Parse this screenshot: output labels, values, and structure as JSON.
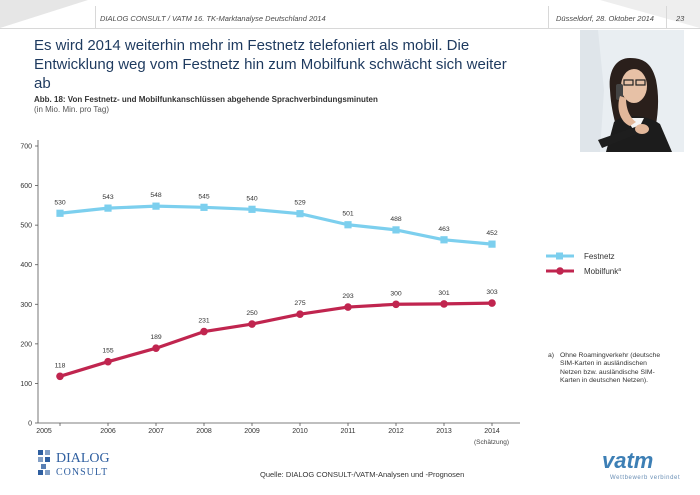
{
  "header": {
    "doc_title": "DIALOG CONSULT / VATM 16. TK-Marktanalyse Deutschland 2014",
    "date": "Düsseldorf, 28. Oktober 2014",
    "page_number": "23"
  },
  "headline": "Es wird 2014 weiterhin mehr im Festnetz telefoniert als mobil. Die Entwicklung weg vom Festnetz hin zum Mobilfunk schwächt sich weiter ab",
  "figure": {
    "title": "Abb. 18: Von Festnetz- und Mobilfunkanschlüssen abgehende Sprachverbindungsminuten",
    "subtitle": "(in Mio. Min. pro Tag)",
    "estimate_note": "(Schätzung)"
  },
  "chart_data": {
    "type": "line",
    "x": [
      "2005",
      "2006",
      "2007",
      "2008",
      "2009",
      "2010",
      "2011",
      "2012",
      "2013",
      "2014"
    ],
    "ylim": [
      0,
      700
    ],
    "yticks": [
      0,
      100,
      200,
      300,
      400,
      500,
      600,
      700
    ],
    "grid": false,
    "legend_position": "right",
    "series": [
      {
        "name": "Festnetz",
        "color": "#7ccfee",
        "marker": "square",
        "values": [
          530,
          543,
          548,
          545,
          540,
          529,
          501,
          488,
          463,
          452
        ]
      },
      {
        "name": "Mobilfunk",
        "name_superscript": "a",
        "color": "#c0254f",
        "marker": "circle",
        "values": [
          118,
          155,
          189,
          231,
          250,
          275,
          293,
          300,
          301,
          303
        ]
      }
    ]
  },
  "footnote": {
    "key": "a)",
    "text": "Ohne Roamingverkehr (deutsche SIM-Karten in ausländischen Netzen bzw. ausländische SIM-Karten in deutschen Netzen)."
  },
  "source": "Quelle: DIALOG CONSULT-/VATM-Analysen und -Prognosen",
  "logos": {
    "dialog_top": "DIALOG",
    "dialog_bottom": "CONSULT",
    "vatm": "vatm",
    "vatm_tagline": "Wettbewerb verbindet"
  }
}
